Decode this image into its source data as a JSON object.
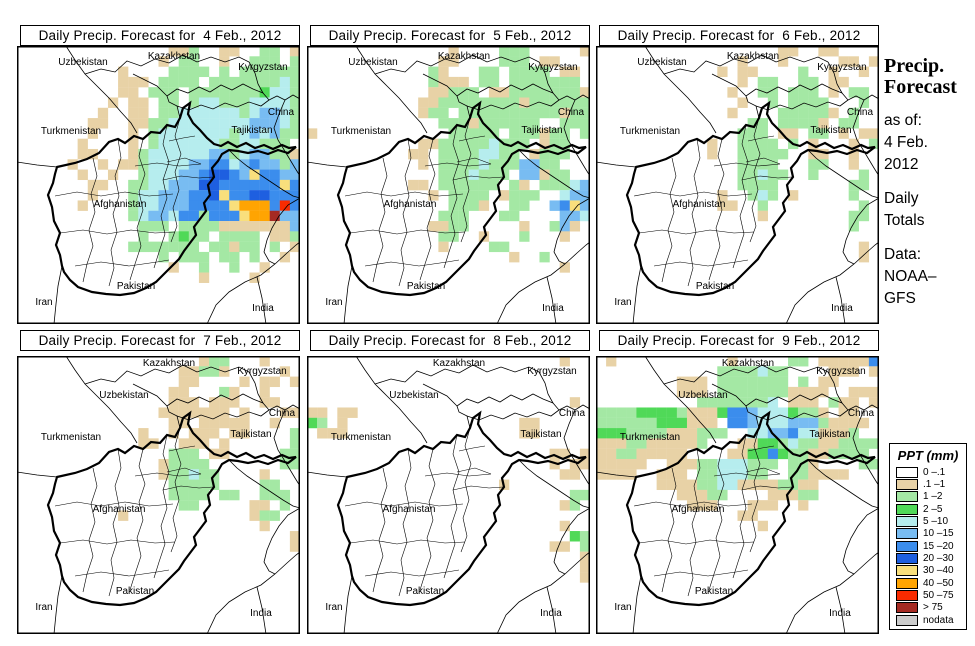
{
  "panels": [
    {
      "title": "Daily Precip. Forecast for  4 Feb., 2012",
      "raster": [
        "...............ttg..tt..gg.t",
        "..............t.gg..t..ggg.g",
        "..........t....gggg.g.gggggg",
        "..........ttt.gggg.gggggggcg",
        "..........tt.ggg.gggggggGccg",
        ".........t.tt.gg.gccgggccccg",
        "........t..tt.ggccccccgcbbcg",
        ".......tt..ttggccccccccbbbcg",
        ".......t...t.gcccccccgcbcbgg",
        "......t....t.gccccccggccggg.",
        "......tt...tgccccccbbgcbbggt",
        ".....t..t.ttgccccbbBBcbBbbgb",
        "......t..t..gcccbbBDDBbyBBbb",
        ".......tt..ggccbbbDDBBBBBByB",
        ".......t...gccbbbBBDyBBDDBBB",
        "......t....gccbbbBBBByoooBrB",
        "...........gcbbcBBgBBByooRbb",
        "............ggg.ggggtttttttb",
        "............g..gGgg.gggg.ttg",
        "...........ggggggg.ggtgg.g.t",
        "..............g.ggg.gg.g..t.",
        "...............t..g..g..t...",
        "..................t....t....",
        "............................",
        "............................",
        "............................",
        "............................"
      ]
    },
    {
      "title": "Daily Precip. Forecast for  5 Feb., 2012",
      "raster": [
        "..............t....ggg.....t",
        ".............tt....ggg.tt...",
        "............gt...gg.gggg.tt.",
        "............gttt.gg.ggggggg.",
        "............ttggg.ttgggggggt",
        "...........ttggggggggtgggggg",
        "...........tgg.ggggggggggtgg",
        ".............gggtgggggg..ggg",
        "t.............ggggg.gggtgg.g",
        "...........ttgggggcggg.tgg..",
        "..........tt.ggggccgg.tggg..",
        "...........t.ggggcgggbbgg...",
        ".............gggcggg.bbtgg..",
        "..........tt.gggggg.gt.gggcb",
        "............t.gggg.tggg..cbb",
        "..............gggt..gg..bByb",
        ".............ggg...gg....bbc",
        "............ttgg.....t..gbt.",
        ".............gg..t...g...t..",
        ".............t....gg........",
        "....................t..g....",
        ".........................t..",
        "............................",
        "............................",
        "............................",
        "............................",
        "............................"
      ]
    },
    {
      "title": "Daily Precip. Forecast for  6 Feb., 2012",
      "raster": [
        "..................tt..tt....",
        "..............t...t.....tt.t",
        "............t.tt....g..t..t.",
        "..............t.gg..gg.tt...",
        ".............t..gg.ggg.t.gg.",
        "..............t..g.gggg...g.",
        ".............t....gggggt.g..",
        "...............gg.ggggt.gg..",
        "..............ggg.tt.gg.t.tt",
        "...........t..gggg.g.t...t.g",
        "...........t..ggggg..tt..t..",
        "..............gggg...gg..t..",
        "..............ggcgg..g....g.",
        "..............gggg.......gg.",
        "............t..gcg.t.....g..",
        "............tt..g.........g.",
        "................t........gg.",
        ".........................g..",
        "............................",
        "..........................t.",
        "..........................t.",
        "............................",
        "............................",
        "............................",
        "............................",
        "............................",
        "............................"
      ]
    },
    {
      "title": "Daily Precip. Forecast for  7 Feb., 2012",
      "raster": [
        "..................tgg...t...",
        "................ttggt.....t.",
        "................tt....t.tt.t",
        "...............tt...gt..t...",
        "...............ttt.ttt..tt..",
        "..............ttttttt.t...tt",
        "...............tt.ttttt..t..",
        "............t..t.ttt.tt....g",
        "............tt..ttt.t......g",
        "...............ggg.tt.....gg",
        "..............tgggg.......gg",
        "..............tggcgg....t...",
        "...............ggggg....gg..",
        "...............gggg.gg..ggg.",
        "................gg.....tt.g.",
        "..........t............tgg..",
        "........................t...",
        "...........................t",
        "...........................t",
        "............................",
        "............................",
        "............................",
        "............................",
        "............................",
        "............................",
        "............................",
        "............................"
      ]
    },
    {
      "title": "Daily Precip. Forecast for  8 Feb., 2012",
      "raster": [
        ".........................t..",
        "............................",
        "............................",
        "............................",
        "..........................t.",
        "tt.tt.......................",
        "Gg.t.................tt.....",
        ".ttt.................tt.....",
        "............................",
        "........................tt.t",
        "........................t.tt",
        ".........................tt.",
        "...................t........",
        "..........................gg",
        ".........................tg.",
        "............................",
        ".........................t..",
        "..........................Gg",
        "........................tt.g",
        "...........................t",
        "...........................t",
        "...........................t",
        "............................",
        "............................",
        "............................",
        "............................",
        "............................"
      ]
    },
    {
      "title": "Daily Precip. Forecast for  9 Feb., 2012",
      "raster": [
        ".t...........t.....gg.tttttB",
        "............ggggcgg....ttt.t",
        "........ttt.ggggggg.g.tt....",
        "........ttt.gggggggtttt..ttt",
        "..........gggggggc.ttt.gtt.t",
        "ggggGGGGgtttGBBbcccGggt.tt..",
        "ggggggGGGttt.BBbcccbbbgtttt.",
        "GGGggggtttggg..ccbbBcctttg..",
        "tttggtttttg...ttGGgcggttgggg",
        "ttggttttt....ttGGBGggttgggg.",
        "ttttt..tttggcccggg.ggt....gg",
        "tttt..ttt.ggcccgg..ggtttt...",
        "......ttttggccttttggtt......",
        "........tttgg....tttgg......",
        ".........ttt...ttt..t.......",
        "..............tt............",
        "................t...........",
        "............................",
        "............................",
        "............................",
        "............................",
        "............................",
        "............................",
        "............................",
        "............................",
        "............................",
        "............................"
      ]
    }
  ],
  "map_labels": {
    "countries": [
      "Uzbekistan",
      "Kazakhstan",
      "Kyrgyzstan",
      "China",
      "Turkmenistan",
      "Tajikistan",
      "Afghanistan",
      "Pakistan",
      "India",
      "Iran"
    ]
  },
  "sidebar": {
    "heading_line1": "Precip.",
    "heading_line2": "Forecast",
    "as_of_label": "as of:",
    "as_of_date1": "4 Feb.",
    "as_of_date2": "2012",
    "totals_line1": "Daily",
    "totals_line2": "Totals",
    "data_label": "Data:",
    "data_source1": "NOAA–",
    "data_source2": "GFS"
  },
  "legend": {
    "title": "PPT (mm)",
    "entries": [
      {
        "key": ".",
        "label": "0 –.1",
        "color": "#FFFFFF"
      },
      {
        "key": "t",
        "label": ".1 –1",
        "color": "#E8D2A6"
      },
      {
        "key": "g",
        "label": "1 –2",
        "color": "#A4E8A4"
      },
      {
        "key": "G",
        "label": "2 –5",
        "color": "#50D958"
      },
      {
        "key": "c",
        "label": "5 –10",
        "color": "#B6EDEE"
      },
      {
        "key": "b",
        "label": "10 –15",
        "color": "#78BCF2"
      },
      {
        "key": "B",
        "label": "15 –20",
        "color": "#3B8DED"
      },
      {
        "key": "D",
        "label": "20 –30",
        "color": "#1E5FE0"
      },
      {
        "key": "y",
        "label": "30 –40",
        "color": "#F9DF7C"
      },
      {
        "key": "o",
        "label": "40 –50",
        "color": "#FFA402"
      },
      {
        "key": "r",
        "label": "50 –75",
        "color": "#FA2B00"
      },
      {
        "key": "R",
        "label": "> 75",
        "color": "#A52A22"
      },
      {
        "key": "n",
        "label": "nodata",
        "color": "#CBCBCB"
      }
    ]
  }
}
